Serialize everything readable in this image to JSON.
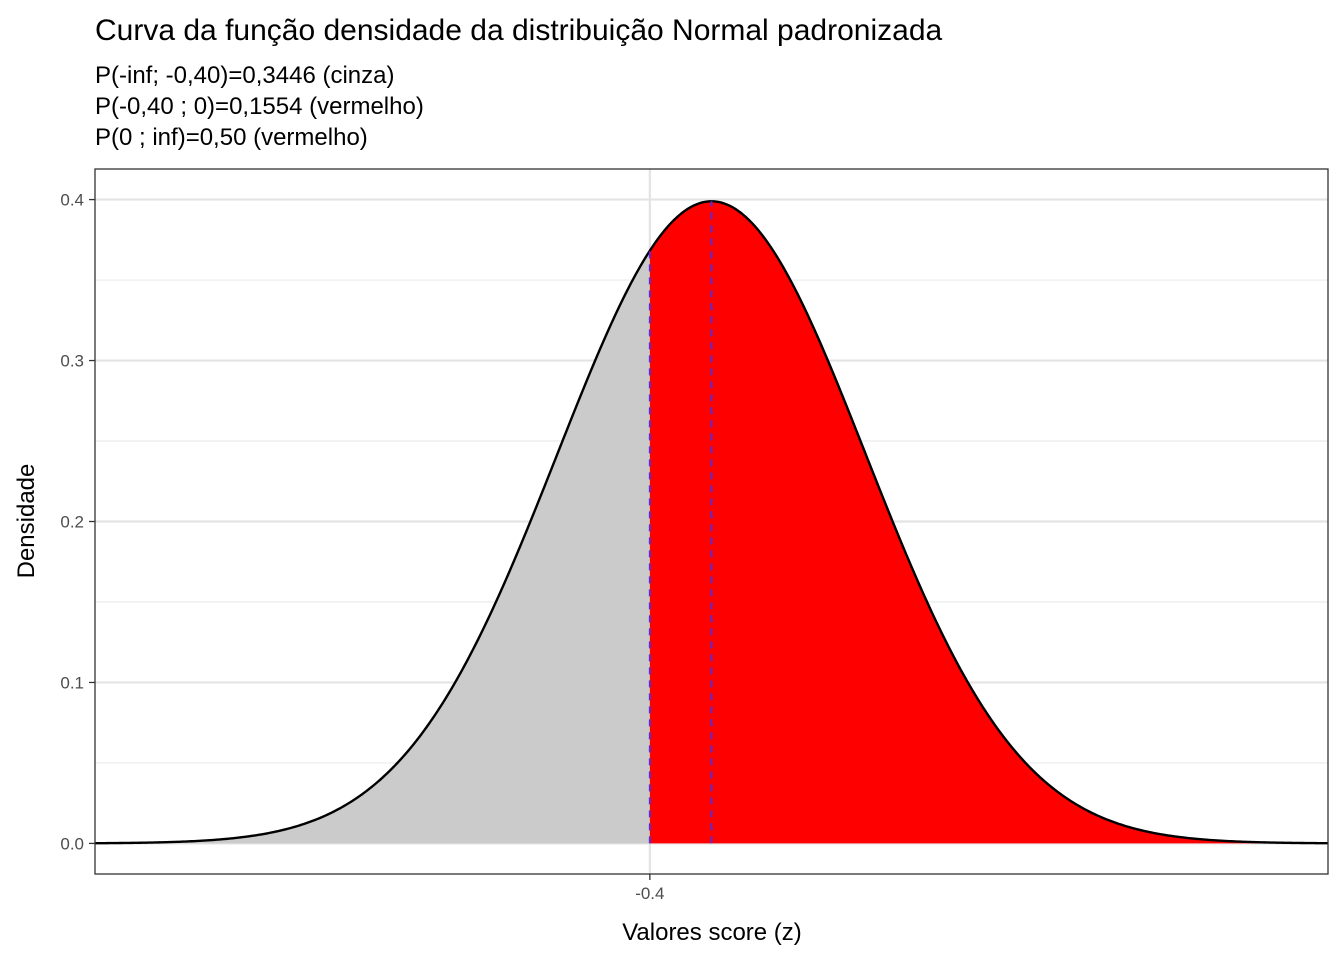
{
  "chart_data": {
    "type": "area",
    "title": "Curva da função densidade da distribuição Normal padronizada",
    "subtitle_lines": [
      "P(-inf; -0,40)=0,3446 (cinza)",
      "P(-0,40 ; 0)=0,1554 (vermelho)",
      "P(0 ; inf)=0,50 (vermelho)"
    ],
    "xlabel": "Valores score (z)",
    "ylabel": "Densidade",
    "xlim": [
      -4.0,
      4.0
    ],
    "ylim": [
      -0.019,
      0.419
    ],
    "curve_range": [
      -4.0,
      4.0
    ],
    "x_ticks": [
      {
        "value": -0.4,
        "label": "-0.4"
      }
    ],
    "y_ticks": [
      {
        "value": 0.0,
        "label": "0.0"
      },
      {
        "value": 0.1,
        "label": "0.1"
      },
      {
        "value": 0.2,
        "label": "0.2"
      },
      {
        "value": 0.3,
        "label": "0.3"
      },
      {
        "value": 0.4,
        "label": "0.4"
      }
    ],
    "regions": [
      {
        "from": -4.0,
        "to": -0.4,
        "color": "#cbcbcb"
      },
      {
        "from": -0.4,
        "to": 4.0,
        "color": "#ff0000"
      }
    ],
    "reference_lines": [
      {
        "x": -0.4,
        "color": "#5a2bd6",
        "style": "dashed"
      },
      {
        "x": 0.0,
        "color": "#5a2bd6",
        "style": "dashed"
      }
    ],
    "curve_color": "#000000",
    "grid": true
  }
}
